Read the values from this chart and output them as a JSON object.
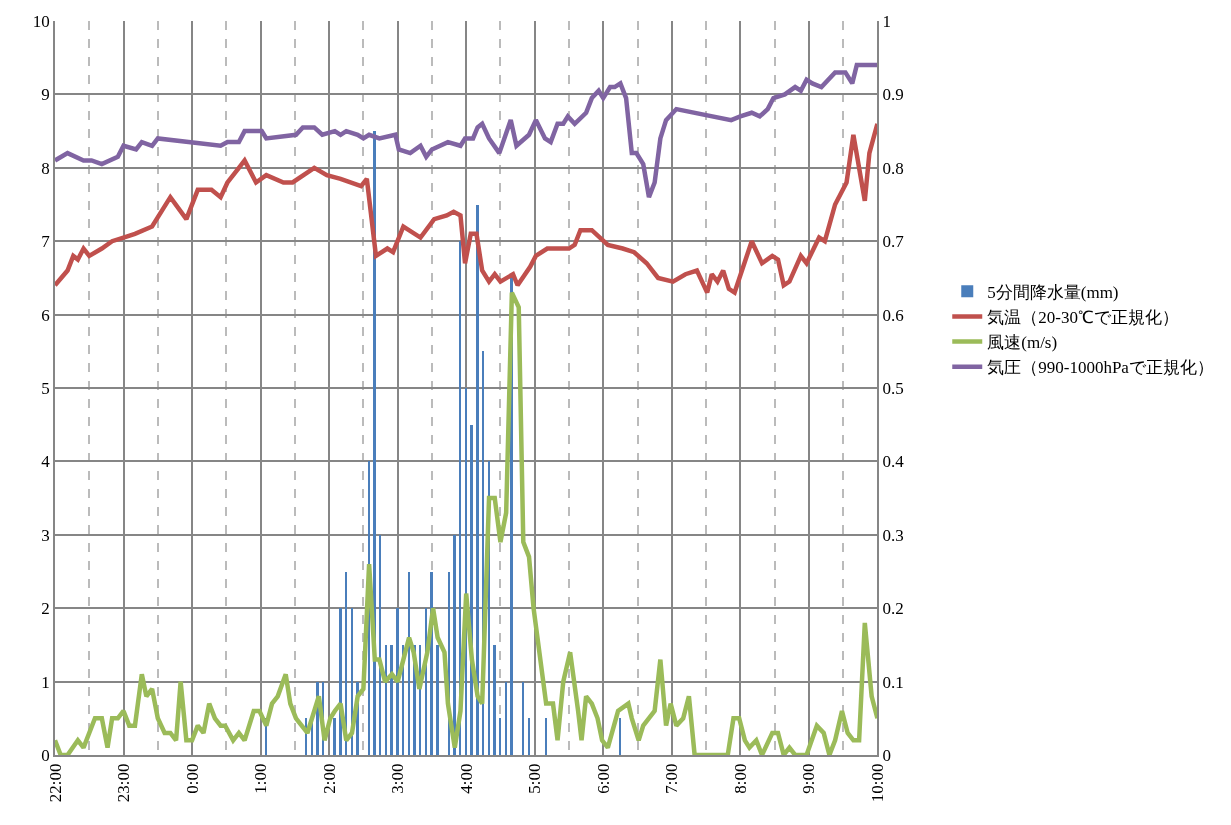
{
  "chart_data": {
    "type": "line",
    "legend": "right",
    "grid": true,
    "marker": "none",
    "line_style": "solid",
    "xlim": [
      "2000-01-01T22:00",
      "2000-01-02T10:00"
    ],
    "xticks": [
      {
        "value": "2000-01-01T22:00",
        "label": "22:00"
      },
      {
        "value": "2000-01-01T22:30",
        "label": null
      },
      {
        "value": "2000-01-01T23:00",
        "label": "23:00"
      },
      {
        "value": "2000-01-01T23:30",
        "label": null
      },
      {
        "value": "2000-01-02T00:00",
        "label": "0:00"
      },
      {
        "value": "2000-01-02T00:30",
        "label": null
      },
      {
        "value": "2000-01-02T01:00",
        "label": "1:00"
      },
      {
        "value": "2000-01-02T01:30",
        "label": null
      },
      {
        "value": "2000-01-02T02:00",
        "label": "2:00"
      },
      {
        "value": "2000-01-02T02:30",
        "label": null
      },
      {
        "value": "2000-01-02T03:00",
        "label": "3:00"
      },
      {
        "value": "2000-01-02T03:30",
        "label": null
      },
      {
        "value": "2000-01-02T04:00",
        "label": "4:00"
      },
      {
        "value": "2000-01-02T04:30",
        "label": null
      },
      {
        "value": "2000-01-02T05:00",
        "label": "5:00"
      },
      {
        "value": "2000-01-02T05:30",
        "label": null
      },
      {
        "value": "2000-01-02T06:00",
        "label": "6:00"
      },
      {
        "value": "2000-01-02T06:30",
        "label": null
      },
      {
        "value": "2000-01-02T07:00",
        "label": "7:00"
      },
      {
        "value": "2000-01-02T07:30",
        "label": null
      },
      {
        "value": "2000-01-02T08:00",
        "label": "8:00"
      },
      {
        "value": "2000-01-02T08:30",
        "label": null
      },
      {
        "value": "2000-01-02T09:00",
        "label": "9:00"
      },
      {
        "value": "2000-01-02T09:30",
        "label": null
      },
      {
        "value": "2000-01-02T10:00",
        "label": "10:00"
      }
    ],
    "ylim": [
      0,
      10
    ],
    "yticks": [
      0,
      1,
      2,
      3,
      4,
      5,
      6,
      7,
      8,
      9,
      10
    ],
    "y2lim": [
      0,
      1
    ],
    "y2ticks": [
      0,
      0.1,
      0.2,
      0.3,
      0.4,
      0.5,
      0.6,
      0.7,
      0.8,
      0.9,
      1
    ],
    "series": [
      {
        "name": "5分間降水量(mm)",
        "type": "bar",
        "color": "#4a7ebb",
        "x": [
          "2000-01-02T01:05",
          "2000-01-02T01:40",
          "2000-01-02T01:45",
          "2000-01-02T01:50",
          "2000-01-02T01:55",
          "2000-01-02T02:00",
          "2000-01-02T02:05",
          "2000-01-02T02:10",
          "2000-01-02T02:15",
          "2000-01-02T02:20",
          "2000-01-02T02:25",
          "2000-01-02T02:35",
          "2000-01-02T02:40",
          "2000-01-02T02:45",
          "2000-01-02T02:50",
          "2000-01-02T02:55",
          "2000-01-02T03:00",
          "2000-01-02T03:05",
          "2000-01-02T03:10",
          "2000-01-02T03:15",
          "2000-01-02T03:20",
          "2000-01-02T03:25",
          "2000-01-02T03:30",
          "2000-01-02T03:35",
          "2000-01-02T03:45",
          "2000-01-02T03:50",
          "2000-01-02T03:55",
          "2000-01-02T04:00",
          "2000-01-02T04:05",
          "2000-01-02T04:10",
          "2000-01-02T04:15",
          "2000-01-02T04:20",
          "2000-01-02T04:25",
          "2000-01-02T04:30",
          "2000-01-02T04:35",
          "2000-01-02T04:40",
          "2000-01-02T04:50",
          "2000-01-02T04:55",
          "2000-01-02T05:10",
          "2000-01-02T06:15"
        ],
        "values": [
          0.5,
          0.5,
          0.5,
          1.0,
          1.0,
          null,
          0.5,
          2.0,
          2.5,
          2.0,
          1.0,
          4.0,
          8.5,
          3.0,
          1.5,
          1.5,
          2.0,
          1.5,
          2.5,
          1.5,
          1.5,
          2.0,
          2.5,
          1.5,
          2.5,
          3.0,
          7.0,
          5.0,
          4.5,
          7.5,
          5.5,
          4.0,
          1.5,
          0.5,
          1.0,
          6.5,
          1.0,
          0.5,
          0.5,
          0.5
        ]
      },
      {
        "name": "気温（20-30℃で正規化）",
        "axis": "y2",
        "color": "#c0504d",
        "x": [
          "2000-01-01T22:00",
          "2000-01-01T22:11",
          "2000-01-01T22:16",
          "2000-01-01T22:20",
          "2000-01-01T22:25",
          "2000-01-01T22:30",
          "2000-01-01T22:41",
          "2000-01-01T22:50",
          "2000-01-01T23:00",
          "2000-01-01T23:10",
          "2000-01-01T23:25",
          "2000-01-01T23:41",
          "2000-01-01T23:55",
          "2000-01-02T00:05",
          "2000-01-02T00:17",
          "2000-01-02T00:25",
          "2000-01-02T00:31",
          "2000-01-02T00:41",
          "2000-01-02T00:46",
          "2000-01-02T00:56",
          "2000-01-02T01:05",
          "2000-01-02T01:20",
          "2000-01-02T01:28",
          "2000-01-02T01:47",
          "2000-01-02T01:58",
          "2000-01-02T02:10",
          "2000-01-02T02:28",
          "2000-01-02T02:33",
          "2000-01-02T02:41",
          "2000-01-02T02:51",
          "2000-01-02T02:56",
          "2000-01-02T03:05",
          "2000-01-02T03:20",
          "2000-01-02T03:32",
          "2000-01-02T03:43",
          "2000-01-02T03:49",
          "2000-01-02T03:55",
          "2000-01-02T03:59",
          "2000-01-02T04:04",
          "2000-01-02T04:09",
          "2000-01-02T04:14",
          "2000-01-02T04:20",
          "2000-01-02T04:25",
          "2000-01-02T04:30",
          "2000-01-02T04:41",
          "2000-01-02T04:45",
          "2000-01-02T04:56",
          "2000-01-02T05:01",
          "2000-01-02T05:11",
          "2000-01-02T05:30",
          "2000-01-02T05:35",
          "2000-01-02T05:40",
          "2000-01-02T05:50",
          "2000-01-02T06:04",
          "2000-01-02T06:17",
          "2000-01-02T06:27",
          "2000-01-02T06:38",
          "2000-01-02T06:48",
          "2000-01-02T07:01",
          "2000-01-02T07:12",
          "2000-01-02T07:22",
          "2000-01-02T07:31",
          "2000-01-02T07:35",
          "2000-01-02T07:40",
          "2000-01-02T07:45",
          "2000-01-02T07:50",
          "2000-01-02T07:55",
          "2000-01-02T08:10",
          "2000-01-02T08:19",
          "2000-01-02T08:28",
          "2000-01-02T08:33",
          "2000-01-02T08:38",
          "2000-01-02T08:43",
          "2000-01-02T08:53",
          "2000-01-02T08:58",
          "2000-01-02T09:09",
          "2000-01-02T09:14",
          "2000-01-02T09:23",
          "2000-01-02T09:33",
          "2000-01-02T09:39",
          "2000-01-02T09:49",
          "2000-01-02T09:53",
          "2000-01-02T10:00"
        ],
        "values": [
          0.64,
          0.66,
          0.68,
          0.675,
          0.69,
          0.68,
          0.69,
          0.7,
          0.705,
          0.71,
          0.72,
          0.76,
          0.73,
          0.77,
          0.77,
          0.76,
          0.78,
          0.8,
          0.81,
          0.78,
          0.79,
          0.78,
          0.78,
          0.8,
          0.79,
          0.785,
          0.775,
          0.785,
          0.68,
          0.69,
          0.685,
          0.72,
          0.705,
          0.73,
          0.735,
          0.74,
          0.735,
          0.67,
          0.71,
          0.71,
          0.66,
          0.645,
          0.655,
          0.645,
          0.655,
          0.64,
          0.665,
          0.68,
          0.69,
          0.69,
          0.695,
          0.715,
          0.715,
          0.695,
          0.69,
          0.685,
          0.67,
          0.65,
          0.645,
          0.655,
          0.66,
          0.63,
          0.655,
          0.645,
          0.66,
          0.635,
          0.63,
          0.7,
          0.67,
          0.68,
          0.675,
          0.64,
          0.645,
          0.68,
          0.67,
          0.705,
          0.7,
          0.75,
          0.78,
          0.845,
          0.755,
          0.82,
          0.86
        ]
      },
      {
        "name": "風速(m/s)",
        "color": "#9bbb59",
        "x": [
          "2000-01-01T22:00",
          "2000-01-01T22:05",
          "2000-01-01T22:11",
          "2000-01-01T22:20",
          "2000-01-01T22:25",
          "2000-01-01T22:35",
          "2000-01-01T22:41",
          "2000-01-01T22:46",
          "2000-01-01T22:50",
          "2000-01-01T22:55",
          "2000-01-01T23:00",
          "2000-01-01T23:05",
          "2000-01-01T23:10",
          "2000-01-01T23:16",
          "2000-01-01T23:20",
          "2000-01-01T23:25",
          "2000-01-01T23:30",
          "2000-01-01T23:36",
          "2000-01-01T23:41",
          "2000-01-01T23:46",
          "2000-01-01T23:50",
          "2000-01-01T23:55",
          "2000-01-02T00:00",
          "2000-01-02T00:05",
          "2000-01-02T00:10",
          "2000-01-02T00:15",
          "2000-01-02T00:20",
          "2000-01-02T00:25",
          "2000-01-02T00:29",
          "2000-01-02T00:36",
          "2000-01-02T00:41",
          "2000-01-02T00:46",
          "2000-01-02T00:54",
          "2000-01-02T00:59",
          "2000-01-02T01:05",
          "2000-01-02T01:10",
          "2000-01-02T01:15",
          "2000-01-02T01:22",
          "2000-01-02T01:26",
          "2000-01-02T01:31",
          "2000-01-02T01:41",
          "2000-01-02T01:51",
          "2000-01-02T01:56",
          "2000-01-02T02:01",
          "2000-01-02T02:05",
          "2000-01-02T02:10",
          "2000-01-02T02:15",
          "2000-01-02T02:20",
          "2000-01-02T02:25",
          "2000-01-02T02:30",
          "2000-01-02T02:35",
          "2000-01-02T02:40",
          "2000-01-02T02:44",
          "2000-01-02T02:49",
          "2000-01-02T02:55",
          "2000-01-02T03:00",
          "2000-01-02T03:05",
          "2000-01-02T03:10",
          "2000-01-02T03:14",
          "2000-01-02T03:19",
          "2000-01-02T03:26",
          "2000-01-02T03:31",
          "2000-01-02T03:35",
          "2000-01-02T03:41",
          "2000-01-02T03:44",
          "2000-01-02T03:50",
          "2000-01-02T03:55",
          "2000-01-02T04:00",
          "2000-01-02T04:05",
          "2000-01-02T04:10",
          "2000-01-02T04:14",
          "2000-01-02T04:20",
          "2000-01-02T04:25",
          "2000-01-02T04:30",
          "2000-01-02T04:35",
          "2000-01-02T04:40",
          "2000-01-02T04:46",
          "2000-01-02T04:50",
          "2000-01-02T04:55",
          "2000-01-02T04:59",
          "2000-01-02T05:10",
          "2000-01-02T05:16",
          "2000-01-02T05:20",
          "2000-01-02T05:25",
          "2000-01-02T05:31",
          "2000-01-02T05:38",
          "2000-01-02T05:41",
          "2000-01-02T05:45",
          "2000-01-02T05:50",
          "2000-01-02T05:55",
          "2000-01-02T05:59",
          "2000-01-02T06:04",
          "2000-01-02T06:13",
          "2000-01-02T06:22",
          "2000-01-02T06:25",
          "2000-01-02T06:31",
          "2000-01-02T06:35",
          "2000-01-02T06:45",
          "2000-01-02T06:50",
          "2000-01-02T06:55",
          "2000-01-02T06:59",
          "2000-01-02T07:04",
          "2000-01-02T07:10",
          "2000-01-02T07:15",
          "2000-01-02T07:20",
          "2000-01-02T07:49",
          "2000-01-02T07:54",
          "2000-01-02T07:59",
          "2000-01-02T08:04",
          "2000-01-02T08:08",
          "2000-01-02T08:14",
          "2000-01-02T08:19",
          "2000-01-02T08:28",
          "2000-01-02T08:33",
          "2000-01-02T08:38",
          "2000-01-02T08:43",
          "2000-01-02T08:48",
          "2000-01-02T08:58",
          "2000-01-02T09:07",
          "2000-01-02T09:13",
          "2000-01-02T09:18",
          "2000-01-02T09:23",
          "2000-01-02T09:29",
          "2000-01-02T09:34",
          "2000-01-02T09:39",
          "2000-01-02T09:44",
          "2000-01-02T09:49",
          "2000-01-02T09:55",
          "2000-01-02T10:00"
        ],
        "values": [
          0.2,
          0,
          0,
          0.2,
          0.1,
          0.5,
          0.5,
          0.1,
          0.5,
          0.5,
          0.6,
          0.4,
          0.4,
          1.1,
          0.8,
          0.9,
          0.5,
          0.3,
          0.3,
          0.2,
          1.0,
          0.2,
          0.2,
          0.4,
          0.3,
          0.7,
          0.5,
          0.4,
          0.4,
          0.2,
          0.3,
          0.2,
          0.6,
          0.6,
          0.4,
          0.7,
          0.8,
          1.1,
          0.7,
          0.5,
          0.3,
          0.8,
          0.2,
          0.5,
          0.6,
          0.7,
          0.2,
          0.3,
          0.8,
          0.9,
          2.6,
          1.3,
          1.3,
          1.0,
          1.1,
          1.0,
          1.3,
          1.6,
          1.4,
          0.9,
          1.4,
          2.0,
          1.6,
          1.4,
          0.7,
          0.1,
          0.6,
          2.2,
          1.3,
          0.8,
          0.7,
          3.5,
          3.5,
          2.9,
          3.3,
          6.3,
          6.1,
          2.9,
          2.7,
          2.0,
          0.7,
          0.7,
          0.2,
          1.0,
          1.4,
          0.6,
          0.2,
          0.8,
          0.7,
          0.5,
          0.2,
          0.1,
          0.6,
          0.7,
          0.5,
          0.2,
          0.4,
          0.6,
          1.3,
          0.4,
          0.7,
          0.4,
          0.5,
          0.8,
          0,
          0,
          0.5,
          0.5,
          0.2,
          0.1,
          0.2,
          0,
          0.3,
          0.3,
          0,
          0.1,
          0,
          0,
          0.4,
          0.3,
          0,
          0.2,
          0.6,
          0.3,
          0.2,
          0.2,
          1.8,
          0.8,
          0.5
        ]
      },
      {
        "name": "気圧（990-1000hPaで正規化）",
        "axis": "y2",
        "color": "#8064a2",
        "x": [
          "2000-01-01T22:00",
          "2000-01-01T22:11",
          "2000-01-01T22:25",
          "2000-01-01T22:32",
          "2000-01-01T22:41",
          "2000-01-01T22:55",
          "2000-01-01T23:00",
          "2000-01-01T23:11",
          "2000-01-01T23:16",
          "2000-01-01T23:25",
          "2000-01-01T23:30",
          "2000-01-02T00:25",
          "2000-01-02T00:31",
          "2000-01-02T00:41",
          "2000-01-02T00:46",
          "2000-01-02T01:01",
          "2000-01-02T01:05",
          "2000-01-02T01:31",
          "2000-01-02T01:37",
          "2000-01-02T01:47",
          "2000-01-02T01:54",
          "2000-01-02T02:05",
          "2000-01-02T02:10",
          "2000-01-02T02:15",
          "2000-01-02T02:25",
          "2000-01-02T02:30",
          "2000-01-02T02:35",
          "2000-01-02T02:44",
          "2000-01-02T02:58",
          "2000-01-02T03:01",
          "2000-01-02T03:11",
          "2000-01-02T03:20",
          "2000-01-02T03:25",
          "2000-01-02T03:30",
          "2000-01-02T03:44",
          "2000-01-02T03:55",
          "2000-01-02T03:59",
          "2000-01-02T04:06",
          "2000-01-02T04:10",
          "2000-01-02T04:14",
          "2000-01-02T04:20",
          "2000-01-02T04:29",
          "2000-01-02T04:39",
          "2000-01-02T04:44",
          "2000-01-02T04:55",
          "2000-01-02T05:01",
          "2000-01-02T05:09",
          "2000-01-02T05:14",
          "2000-01-02T05:20",
          "2000-01-02T05:25",
          "2000-01-02T05:29",
          "2000-01-02T05:35",
          "2000-01-02T05:45",
          "2000-01-02T05:50",
          "2000-01-02T05:56",
          "2000-01-02T06:00",
          "2000-01-02T06:06",
          "2000-01-02T06:10",
          "2000-01-02T06:15",
          "2000-01-02T06:20",
          "2000-01-02T06:25",
          "2000-01-02T06:29",
          "2000-01-02T06:35",
          "2000-01-02T06:40",
          "2000-01-02T06:45",
          "2000-01-02T06:50",
          "2000-01-02T06:55",
          "2000-01-02T07:04",
          "2000-01-02T07:52",
          "2000-01-02T08:00",
          "2000-01-02T08:10",
          "2000-01-02T08:17",
          "2000-01-02T08:24",
          "2000-01-02T08:29",
          "2000-01-02T08:39",
          "2000-01-02T08:48",
          "2000-01-02T08:53",
          "2000-01-02T08:58",
          "2000-01-02T09:03",
          "2000-01-02T09:11",
          "2000-01-02T09:23",
          "2000-01-02T09:32",
          "2000-01-02T09:38",
          "2000-01-02T09:42",
          "2000-01-02T10:00"
        ],
        "values": [
          0.81,
          0.82,
          0.81,
          0.81,
          0.805,
          0.815,
          0.83,
          0.825,
          0.835,
          0.83,
          0.84,
          0.83,
          0.835,
          0.835,
          0.85,
          0.85,
          0.84,
          0.845,
          0.855,
          0.855,
          0.845,
          0.85,
          0.845,
          0.85,
          0.845,
          0.84,
          0.845,
          0.84,
          0.845,
          0.825,
          0.82,
          0.83,
          0.815,
          0.825,
          0.835,
          0.83,
          0.84,
          0.84,
          0.855,
          0.86,
          0.84,
          0.82,
          0.865,
          0.83,
          0.845,
          0.865,
          0.84,
          0.835,
          0.86,
          0.86,
          0.87,
          0.86,
          0.875,
          0.895,
          0.905,
          0.895,
          0.91,
          0.91,
          0.915,
          0.895,
          0.82,
          0.82,
          0.805,
          0.76,
          0.78,
          0.84,
          0.865,
          0.88,
          0.865,
          0.87,
          0.875,
          0.87,
          0.88,
          0.895,
          0.9,
          0.91,
          0.905,
          0.92,
          0.915,
          0.91,
          0.93,
          0.93,
          0.915,
          0.94,
          0.94
        ]
      }
    ]
  }
}
